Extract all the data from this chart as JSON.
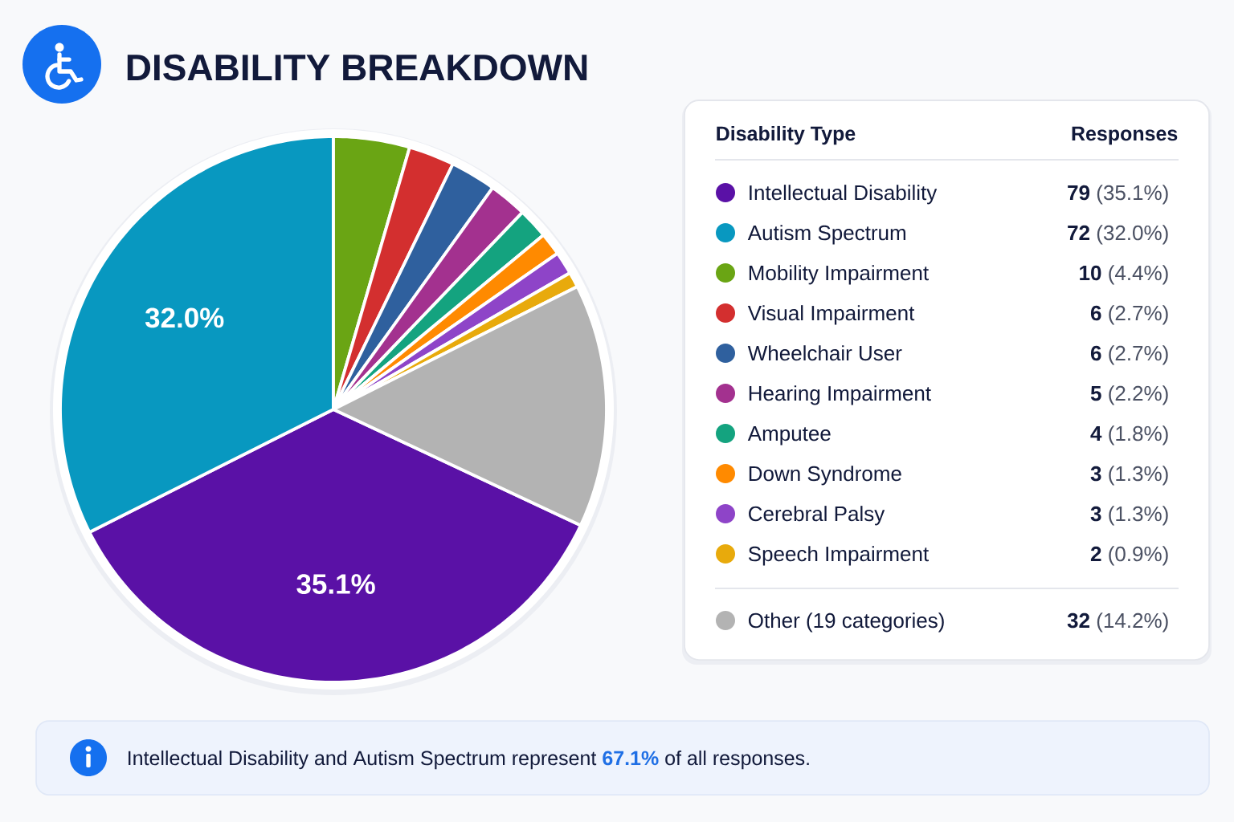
{
  "chart_data": {
    "type": "pie",
    "title": "DISABILITY BREAKDOWN",
    "legend_title": "Disability Type",
    "categories": [
      "Intellectual Disability",
      "Autism Spectrum",
      "Mobility Impairment",
      "Visual Impairment",
      "Wheelchair User",
      "Hearing Impairment",
      "Amputee",
      "Down Syndrome",
      "Cerebral Palsy",
      "Speech Impairment",
      "Other (19 categories)"
    ],
    "values": [
      79,
      72,
      10,
      6,
      6,
      5,
      4,
      3,
      3,
      2,
      32
    ],
    "colors": [
      "#5a11a6",
      "#0898c0",
      "#6aa514",
      "#d32f2f",
      "#2f609e",
      "#a3318f",
      "#14a37f",
      "#ff8a00",
      "#8e44c8",
      "#e8aa0c",
      "#b3b3b3"
    ],
    "value_labels": [
      "**79** (35.1%)",
      "**72** (32.0%)",
      "**10** (4.4%)",
      "**6** (2.7%)",
      "**6** (2.7%)",
      "**5** (2.2%)",
      "**4** (1.8%)",
      "**3** (1.3%)",
      "**3** (1.3%)",
      "**2** (0.9%)",
      "**32** (14.2%)"
    ],
    "legend": "right",
    "annotations": [
      "Responses",
      {
        "text": "35.1%",
        "x": "Intellectual Disability"
      },
      {
        "text": "32.0%",
        "x": "Autism Spectrum"
      },
      "Intellectual Disability and Autism Spectrum represent **67.1%** of all responses."
    ]
  }
}
